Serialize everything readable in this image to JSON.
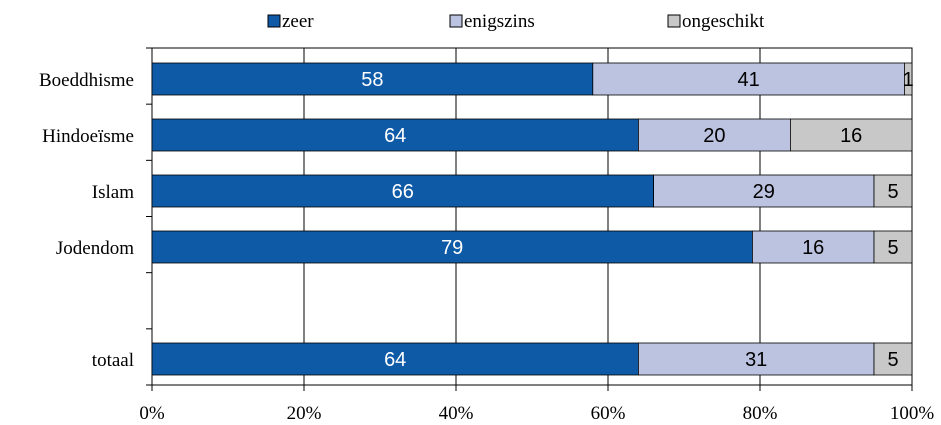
{
  "chart_data": {
    "type": "bar",
    "orientation": "horizontal",
    "stacked": "percent",
    "categories": [
      "Boeddhisme",
      "Hindoeïsme",
      "Islam",
      "Jodendom",
      "",
      "totaal"
    ],
    "series": [
      {
        "name": "zeer",
        "color": "#0e5aa7",
        "label_color": "#ffffff",
        "values": [
          58,
          64,
          66,
          79,
          null,
          64
        ]
      },
      {
        "name": "enigszins",
        "color": "#bcc3e0",
        "label_color": "#000000",
        "values": [
          41,
          20,
          29,
          16,
          null,
          31
        ]
      },
      {
        "name": "ongeschikt",
        "color": "#c8c8c8",
        "label_color": "#000000",
        "values": [
          1,
          16,
          5,
          5,
          null,
          5
        ]
      }
    ],
    "x_ticks": [
      "0%",
      "20%",
      "40%",
      "60%",
      "80%",
      "100%"
    ],
    "xlim": [
      0,
      100
    ],
    "xlabel": "",
    "ylabel": "",
    "grid": "vertical",
    "legend_position": "top"
  }
}
